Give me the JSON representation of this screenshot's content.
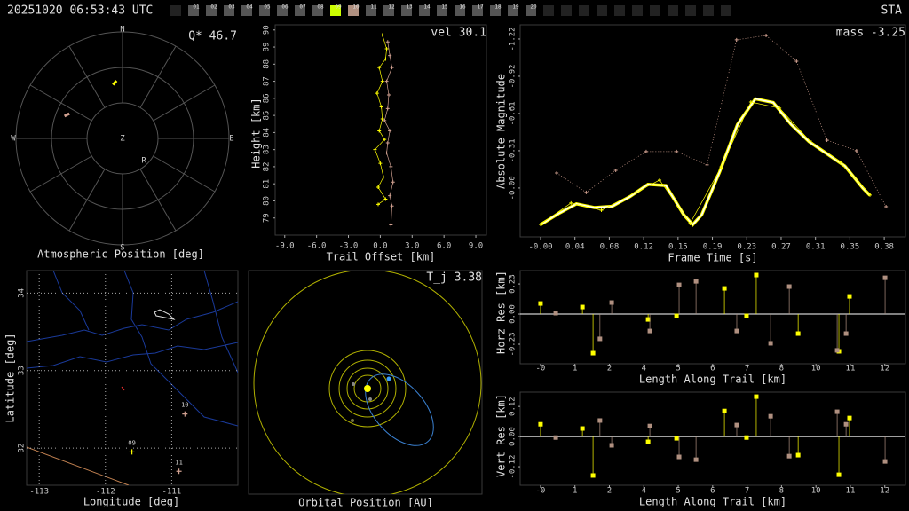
{
  "header": {
    "timestamp": "20251020 06:53:43 UTC",
    "station": "STA",
    "cameras": [
      "01",
      "02",
      "03",
      "04",
      "05",
      "06",
      "07",
      "08",
      "09",
      "10",
      "11",
      "12",
      "13",
      "14",
      "15",
      "16",
      "17",
      "18",
      "19",
      "20"
    ],
    "camera_colors": [
      "#555555",
      "#555555",
      "#555555",
      "#555555",
      "#555555",
      "#555555",
      "#555555",
      "#555555",
      "#ccff00",
      "#b09080",
      "#555555",
      "#555555",
      "#555555",
      "#555555",
      "#555555",
      "#555555",
      "#555555",
      "#555555",
      "#555555",
      "#555555"
    ]
  },
  "chart_data": [
    {
      "type": "polar",
      "title": "Atmospheric Position [deg]",
      "annotation": "Q* 46.7",
      "directions": [
        "N",
        "E",
        "S",
        "W"
      ],
      "center_label": "Z",
      "radiant": {
        "label": "R",
        "azimuth": 136,
        "altitude": 64
      },
      "series": [
        {
          "color": "#ffff00",
          "x": [
            350,
            352,
            354
          ],
          "values": [
            44,
            42.5,
            41
          ]
        },
        {
          "color": "#d0a090",
          "x": [
            291,
            293,
            295
          ],
          "values": [
            37.5,
            39,
            40.5
          ]
        }
      ]
    },
    {
      "type": "line",
      "xlabel": "Trail Offset [km]",
      "ylabel": "Height [km]",
      "annotation": "vel 30.1",
      "xlim": [
        -9.9,
        10
      ],
      "ylim": [
        78,
        90.3
      ],
      "xticks": [
        {
          "value": -9,
          "label": "-9.0"
        },
        {
          "value": -6,
          "label": "-6.0"
        },
        {
          "value": -3,
          "label": "-3.0"
        },
        {
          "value": 0,
          "label": "0.0"
        },
        {
          "value": 3,
          "label": "3.0"
        },
        {
          "value": 6,
          "label": "6.0"
        },
        {
          "value": 9,
          "label": "9.0"
        }
      ],
      "yticks": [
        79,
        80,
        81,
        82,
        83,
        84,
        85,
        86,
        87,
        88,
        89,
        90
      ],
      "series": [
        {
          "color": "#ffff00",
          "x": [
            0.2,
            0.6,
            0.5,
            -0.1,
            0.2,
            -0.3,
            0.1,
            0.2,
            -0.1,
            0.4,
            -0.5,
            0.0,
            0.3,
            -0.2,
            0.5,
            -0.2
          ],
          "values": [
            89.7,
            88.9,
            88.3,
            87.8,
            87.0,
            86.3,
            85.5,
            84.8,
            84.1,
            83.6,
            83.0,
            82.2,
            81.4,
            80.8,
            80.1,
            79.8
          ]
        },
        {
          "color": "#d0a090",
          "x": [
            0.7,
            0.9,
            1.1,
            0.6,
            0.8,
            0.7,
            0.4,
            0.9,
            0.7,
            0.6,
            1.0,
            1.2,
            0.9,
            1.1,
            1.0
          ],
          "values": [
            89.3,
            88.5,
            87.8,
            87.0,
            86.2,
            85.4,
            84.7,
            84.1,
            83.4,
            82.8,
            82.0,
            81.1,
            80.3,
            79.7,
            78.6
          ]
        }
      ]
    },
    {
      "type": "line",
      "xlabel": "Frame Time [s]",
      "ylabel": "Absolute Magnitude",
      "annotation": "mass -3.25",
      "xlim": [
        -0.0228,
        0.4077
      ],
      "ylim": [
        0.4,
        -1.336
      ],
      "xticks": [
        {
          "value": 0,
          "label": "-0.00"
        },
        {
          "value": 0.0384,
          "label": "0.04"
        },
        {
          "value": 0.0768,
          "label": "0.08"
        },
        {
          "value": 0.1152,
          "label": "0.12"
        },
        {
          "value": 0.1536,
          "label": "0.15"
        },
        {
          "value": 0.192,
          "label": "0.19"
        },
        {
          "value": 0.2304,
          "label": "0.23"
        },
        {
          "value": 0.2688,
          "label": "0.27"
        },
        {
          "value": 0.3072,
          "label": "0.31"
        },
        {
          "value": 0.3456,
          "label": "0.35"
        },
        {
          "value": 0.384,
          "label": "0.38"
        }
      ],
      "yticks": [
        -1.22,
        {
          "value": -0.915,
          "label": "-0.92"
        },
        -0.61,
        {
          "value": -0.305,
          "label": "-0.31"
        },
        {
          "value": 0,
          "label": "-0.00"
        }
      ],
      "series": [
        {
          "color": "#ffffff",
          "markers": false,
          "x": [
            0,
            0.02,
            0.04,
            0.06,
            0.08,
            0.1,
            0.12,
            0.14,
            0.16,
            0.17,
            0.18,
            0.2,
            0.22,
            0.24,
            0.26,
            0.28,
            0.3,
            0.32,
            0.34,
            0.36,
            0.368
          ],
          "values": [
            0.3,
            0.21,
            0.13,
            0.16,
            0.15,
            0.07,
            -0.03,
            -0.02,
            0.22,
            0.3,
            0.22,
            -0.13,
            -0.52,
            -0.73,
            -0.7,
            -0.52,
            -0.38,
            -0.28,
            -0.18,
            0.0,
            0.06
          ]
        },
        {
          "color": "#ffff00",
          "x": [
            0,
            0.034,
            0.068,
            0.133,
            0.167,
            0.202,
            0.235,
            0.267,
            0.301,
            0.335,
            0.368
          ],
          "values": [
            0.298,
            0.123,
            0.182,
            -0.065,
            0.291,
            -0.174,
            -0.704,
            -0.654,
            -0.385,
            -0.211,
            0.058
          ]
        },
        {
          "color": "#d0a090",
          "line_style": "dotted",
          "x": [
            0.018,
            0.051,
            0.084,
            0.118,
            0.152,
            0.186,
            0.219,
            0.252,
            0.286,
            0.32,
            0.353,
            0.386
          ],
          "values": [
            -0.123,
            0.036,
            -0.145,
            -0.298,
            -0.298,
            -0.189,
            -1.213,
            -1.249,
            -1.038,
            -0.392,
            -0.305,
            0.153
          ]
        }
      ]
    },
    {
      "type": "map",
      "xlabel": "Longitude [deg]",
      "ylabel": "Latitude [deg]",
      "xlim": [
        -113.19,
        -110.0
      ],
      "ylim": [
        31.52,
        34.29
      ],
      "xticks": [
        -113,
        -112,
        -111
      ],
      "yticks": [
        32,
        33,
        34
      ],
      "grid": true,
      "categories": [
        "09",
        "10",
        "11"
      ],
      "x": [
        -111.6,
        -110.8,
        -110.89
      ],
      "values": [
        31.95,
        32.44,
        31.7
      ],
      "colors": [
        "#ffff00",
        "#d0a090",
        "#d0a090"
      ]
    },
    {
      "type": "orbit",
      "title": "Orbital Position [AU]",
      "annotation": "T_j 3.38"
    },
    {
      "type": "stem",
      "xlabel": "Length Along Trail [km]",
      "ylabel": "Horz Res [km]",
      "xlim": [
        -0.71,
        12.72
      ],
      "ylim": [
        -0.379,
        0.332
      ],
      "xticks": [
        {
          "value": 0,
          "label": "-0"
        },
        {
          "value": 1.2,
          "label": "1"
        },
        {
          "value": 2.4,
          "label": "2"
        },
        {
          "value": 3.6,
          "label": "4"
        },
        {
          "value": 4.8,
          "label": "5"
        },
        6,
        {
          "value": 7.2,
          "label": "7"
        },
        {
          "value": 8.4,
          "label": "8"
        },
        {
          "value": 9.6,
          "label": "10"
        },
        {
          "value": 10.8,
          "label": "11"
        },
        12
      ],
      "yticks": [
        0.23,
        {
          "value": 0,
          "label": "0.00"
        },
        -0.23
      ],
      "series": [
        {
          "color": "#ffff00",
          "x": [
            0,
            1.46,
            1.83,
            3.75,
            4.74,
            6.41,
            7.18,
            7.52,
            8.98,
            10.4,
            10.77
          ],
          "values": [
            0.081,
            0.054,
            -0.298,
            -0.041,
            -0.014,
            0.196,
            -0.014,
            0.298,
            -0.149,
            -0.284,
            0.135
          ]
        },
        {
          "color": "#b09080",
          "x": [
            0.53,
            2.07,
            2.48,
            3.81,
            4.83,
            5.42,
            6.84,
            8.02,
            8.67,
            10.34,
            10.65,
            12.01
          ],
          "values": [
            0.007,
            -0.189,
            0.088,
            -0.129,
            0.223,
            0.25,
            -0.129,
            -0.223,
            0.21,
            -0.277,
            -0.149,
            0.277
          ]
        }
      ]
    },
    {
      "type": "stem",
      "xlabel": "Length Along Trail [km]",
      "ylabel": "Vert Res [km]",
      "xlim": [
        -0.71,
        12.72
      ],
      "ylim": [
        -0.194,
        0.177
      ],
      "xticks": [
        {
          "value": 0,
          "label": "-0"
        },
        {
          "value": 1.2,
          "label": "1"
        },
        {
          "value": 2.4,
          "label": "2"
        },
        {
          "value": 3.6,
          "label": "4"
        },
        {
          "value": 4.8,
          "label": "5"
        },
        6,
        {
          "value": 7.2,
          "label": "7"
        },
        {
          "value": 8.4,
          "label": "8"
        },
        {
          "value": 9.6,
          "label": "10"
        },
        {
          "value": 10.8,
          "label": "11"
        },
        12
      ],
      "yticks": [
        0.12,
        {
          "value": 0,
          "label": "0.00"
        },
        -0.12
      ],
      "series": [
        {
          "color": "#ffff00",
          "x": [
            0,
            1.46,
            1.83,
            3.75,
            4.74,
            6.41,
            7.18,
            7.52,
            8.98,
            10.4,
            10.77
          ],
          "values": [
            0.049,
            0.032,
            -0.155,
            -0.021,
            -0.007,
            0.102,
            -0.004,
            0.159,
            -0.074,
            -0.152,
            0.074
          ]
        },
        {
          "color": "#b09080",
          "x": [
            0.53,
            2.07,
            2.48,
            3.81,
            4.83,
            5.42,
            6.84,
            8.02,
            8.67,
            10.34,
            10.65,
            12.01
          ],
          "values": [
            -0.004,
            0.064,
            -0.035,
            0.042,
            -0.081,
            -0.092,
            0.046,
            0.081,
            -0.078,
            0.099,
            0.049,
            -0.099
          ]
        }
      ]
    }
  ]
}
